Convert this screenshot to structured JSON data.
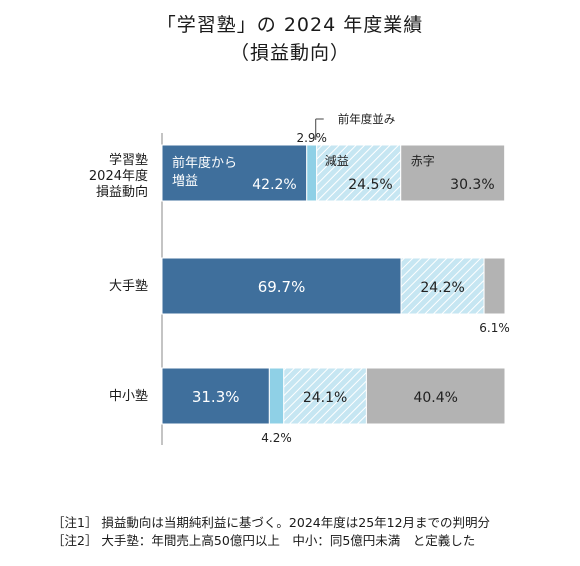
{
  "title_line1": "「学習塾」の 2024 年度業績",
  "title_line2": "（損益動向）",
  "chart_data": {
    "type": "bar",
    "orientation": "horizontal",
    "stacked": true,
    "unit": "%",
    "xlim": [
      0,
      100
    ],
    "categories": [
      [
        "学習塾",
        "2024年度",
        "損益動向"
      ],
      [
        "大手塾"
      ],
      [
        "中小塾"
      ]
    ],
    "series": [
      {
        "name": "前年度から増益",
        "values": [
          42.2,
          69.7,
          31.3
        ],
        "color": "#3f6f9c",
        "fill": "solid"
      },
      {
        "name": "前年度並み",
        "values": [
          2.9,
          0.0,
          4.2
        ],
        "color": "#8fd0e6",
        "fill": "solid"
      },
      {
        "name": "減益",
        "values": [
          24.5,
          24.2,
          24.1
        ],
        "color": "#c6e6f2",
        "fill": "hatch"
      },
      {
        "name": "赤字",
        "values": [
          30.3,
          6.1,
          40.4
        ],
        "color": "#b3b3b3",
        "fill": "solid"
      }
    ],
    "data_labels": [
      [
        "42.2%",
        "2.9%",
        "24.5%",
        "30.3%"
      ],
      [
        "69.7%",
        "",
        "24.2%",
        "6.1%"
      ],
      [
        "31.3%",
        "4.2%",
        "24.1%",
        "40.4%"
      ]
    ],
    "inline_series_labels": {
      "増益": [
        "前年度から",
        "増益"
      ],
      "並み": "前年度並み",
      "減益": "減益",
      "赤字": "赤字"
    }
  },
  "notes": [
    "［注1］ 損益動向は当期純利益に基づく。2024年度は25年12月までの判明分",
    "［注2］ 大手塾：年間売上高50億円以上　中小：同5億円未満　と定義した"
  ]
}
